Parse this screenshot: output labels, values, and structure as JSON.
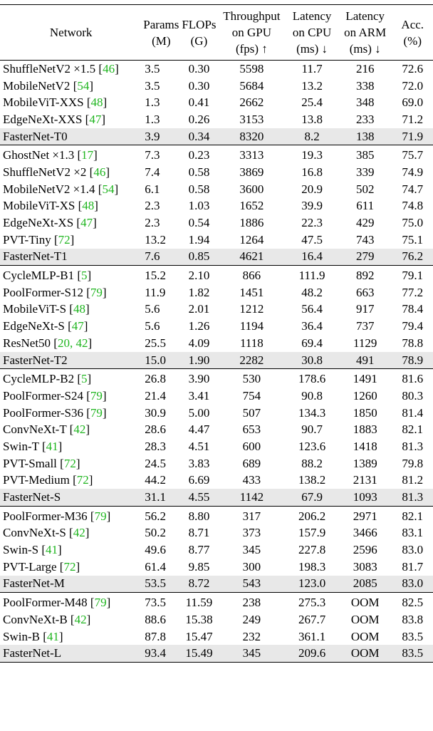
{
  "headers": {
    "network": "Network",
    "params": [
      "Params",
      "(M)"
    ],
    "flops": [
      "FLOPs",
      "(G)"
    ],
    "throughput": [
      "Throughput",
      "on GPU",
      "(fps) ↑"
    ],
    "latency_cpu": [
      "Latency",
      "on CPU",
      "(ms) ↓"
    ],
    "latency_arm": [
      "Latency",
      "on ARM",
      "(ms) ↓"
    ],
    "acc": [
      "Acc.",
      "(%)"
    ]
  },
  "groups": [
    {
      "rows": [
        {
          "name": "ShuffleNetV2 ×1.5 ",
          "ref": "46",
          "params": "3.5",
          "flops": "0.30",
          "gpu": "5598",
          "cpu": "11.7",
          "arm": "216",
          "acc": "72.6"
        },
        {
          "name": "MobileNetV2 ",
          "ref": "54",
          "params": "3.5",
          "flops": "0.30",
          "gpu": "5684",
          "cpu": "13.2",
          "arm": "338",
          "acc": "72.0"
        },
        {
          "name": "MobileViT-XXS ",
          "ref": "48",
          "params": "1.3",
          "flops": "0.41",
          "gpu": "2662",
          "cpu": "25.4",
          "arm": "348",
          "acc": "69.0"
        },
        {
          "name": "EdgeNeXt-XXS ",
          "ref": "47",
          "params": "1.3",
          "flops": "0.26",
          "gpu": "3153",
          "cpu": "13.8",
          "arm": "233",
          "acc": "71.2"
        },
        {
          "name": "FasterNet-T0",
          "ref": "",
          "params": "3.9",
          "flops": "0.34",
          "gpu": "8320",
          "cpu": "8.2",
          "arm": "138",
          "acc": "71.9",
          "highlight": true
        }
      ]
    },
    {
      "rows": [
        {
          "name": "GhostNet ×1.3 ",
          "ref": "17",
          "params": "7.3",
          "flops": "0.23",
          "gpu": "3313",
          "cpu": "19.3",
          "arm": "385",
          "acc": "75.7"
        },
        {
          "name": "ShuffleNetV2 ×2 ",
          "ref": "46",
          "params": "7.4",
          "flops": "0.58",
          "gpu": "3869",
          "cpu": "16.8",
          "arm": "339",
          "acc": "74.9"
        },
        {
          "name": "MobileNetV2 ×1.4 ",
          "ref": "54",
          "params": "6.1",
          "flops": "0.58",
          "gpu": "3600",
          "cpu": "20.9",
          "arm": "502",
          "acc": "74.7"
        },
        {
          "name": "MobileViT-XS ",
          "ref": "48",
          "params": "2.3",
          "flops": "1.03",
          "gpu": "1652",
          "cpu": "39.9",
          "arm": "611",
          "acc": "74.8"
        },
        {
          "name": "EdgeNeXt-XS ",
          "ref": "47",
          "params": "2.3",
          "flops": "0.54",
          "gpu": "1886",
          "cpu": "22.3",
          "arm": "429",
          "acc": "75.0"
        },
        {
          "name": "PVT-Tiny ",
          "ref": "72",
          "params": "13.2",
          "flops": "1.94",
          "gpu": "1264",
          "cpu": "47.5",
          "arm": "743",
          "acc": "75.1"
        },
        {
          "name": "FasterNet-T1",
          "ref": "",
          "params": "7.6",
          "flops": "0.85",
          "gpu": "4621",
          "cpu": "16.4",
          "arm": "279",
          "acc": "76.2",
          "highlight": true
        }
      ]
    },
    {
      "rows": [
        {
          "name": "CycleMLP-B1 ",
          "ref": "5",
          "params": "15.2",
          "flops": "2.10",
          "gpu": "866",
          "cpu": "111.9",
          "arm": "892",
          "acc": "79.1"
        },
        {
          "name": "PoolFormer-S12 ",
          "ref": "79",
          "params": "11.9",
          "flops": "1.82",
          "gpu": "1451",
          "cpu": "48.2",
          "arm": "663",
          "acc": "77.2"
        },
        {
          "name": "MobileViT-S ",
          "ref": "48",
          "params": "5.6",
          "flops": "2.01",
          "gpu": "1212",
          "cpu": "56.4",
          "arm": "917",
          "acc": "78.4"
        },
        {
          "name": "EdgeNeXt-S ",
          "ref": "47",
          "params": "5.6",
          "flops": "1.26",
          "gpu": "1194",
          "cpu": "36.4",
          "arm": "737",
          "acc": "79.4"
        },
        {
          "name": "ResNet50 ",
          "ref": "20, 42",
          "params": "25.5",
          "flops": "4.09",
          "gpu": "1118",
          "cpu": "69.4",
          "arm": "1129",
          "acc": "78.8"
        },
        {
          "name": "FasterNet-T2",
          "ref": "",
          "params": "15.0",
          "flops": "1.90",
          "gpu": "2282",
          "cpu": "30.8",
          "arm": "491",
          "acc": "78.9",
          "highlight": true
        }
      ]
    },
    {
      "rows": [
        {
          "name": "CycleMLP-B2 ",
          "ref": "5",
          "params": "26.8",
          "flops": "3.90",
          "gpu": "530",
          "cpu": "178.6",
          "arm": "1491",
          "acc": "81.6"
        },
        {
          "name": "PoolFormer-S24 ",
          "ref": "79",
          "params": "21.4",
          "flops": "3.41",
          "gpu": "754",
          "cpu": "90.8",
          "arm": "1260",
          "acc": "80.3"
        },
        {
          "name": "PoolFormer-S36 ",
          "ref": "79",
          "params": "30.9",
          "flops": "5.00",
          "gpu": "507",
          "cpu": "134.3",
          "arm": "1850",
          "acc": "81.4"
        },
        {
          "name": "ConvNeXt-T ",
          "ref": "42",
          "params": "28.6",
          "flops": "4.47",
          "gpu": "653",
          "cpu": "90.7",
          "arm": "1883",
          "acc": "82.1"
        },
        {
          "name": "Swin-T ",
          "ref": "41",
          "params": "28.3",
          "flops": "4.51",
          "gpu": "600",
          "cpu": "123.6",
          "arm": "1418",
          "acc": "81.3"
        },
        {
          "name": "PVT-Small ",
          "ref": "72",
          "params": "24.5",
          "flops": "3.83",
          "gpu": "689",
          "cpu": "88.2",
          "arm": "1389",
          "acc": "79.8"
        },
        {
          "name": "PVT-Medium ",
          "ref": "72",
          "params": "44.2",
          "flops": "6.69",
          "gpu": "433",
          "cpu": "138.2",
          "arm": "2131",
          "acc": "81.2"
        },
        {
          "name": "FasterNet-S",
          "ref": "",
          "params": "31.1",
          "flops": "4.55",
          "gpu": "1142",
          "cpu": "67.9",
          "arm": "1093",
          "acc": "81.3",
          "highlight": true
        }
      ]
    },
    {
      "rows": [
        {
          "name": "PoolFormer-M36 ",
          "ref": "79",
          "params": "56.2",
          "flops": "8.80",
          "gpu": "317",
          "cpu": "206.2",
          "arm": "2971",
          "acc": "82.1"
        },
        {
          "name": "ConvNeXt-S ",
          "ref": "42",
          "params": "50.2",
          "flops": "8.71",
          "gpu": "373",
          "cpu": "157.9",
          "arm": "3466",
          "acc": "83.1"
        },
        {
          "name": "Swin-S ",
          "ref": "41",
          "params": "49.6",
          "flops": "8.77",
          "gpu": "345",
          "cpu": "227.8",
          "arm": "2596",
          "acc": "83.0"
        },
        {
          "name": "PVT-Large ",
          "ref": "72",
          "params": "61.4",
          "flops": "9.85",
          "gpu": "300",
          "cpu": "198.3",
          "arm": "3083",
          "acc": "81.7"
        },
        {
          "name": "FasterNet-M",
          "ref": "",
          "params": "53.5",
          "flops": "8.72",
          "gpu": "543",
          "cpu": "123.0",
          "arm": "2085",
          "acc": "83.0",
          "highlight": true
        }
      ]
    },
    {
      "rows": [
        {
          "name": "PoolFormer-M48 ",
          "ref": "79",
          "params": "73.5",
          "flops": "11.59",
          "gpu": "238",
          "cpu": "275.3",
          "arm": "OOM",
          "acc": "82.5"
        },
        {
          "name": "ConvNeXt-B ",
          "ref": "42",
          "params": "88.6",
          "flops": "15.38",
          "gpu": "249",
          "cpu": "267.7",
          "arm": "OOM",
          "acc": "83.8"
        },
        {
          "name": "Swin-B ",
          "ref": "41",
          "params": "87.8",
          "flops": "15.47",
          "gpu": "232",
          "cpu": "361.1",
          "arm": "OOM",
          "acc": "83.5"
        },
        {
          "name": "FasterNet-L",
          "ref": "",
          "params": "93.4",
          "flops": "15.49",
          "gpu": "345",
          "cpu": "209.6",
          "arm": "OOM",
          "acc": "83.5",
          "highlight": true
        }
      ]
    }
  ]
}
